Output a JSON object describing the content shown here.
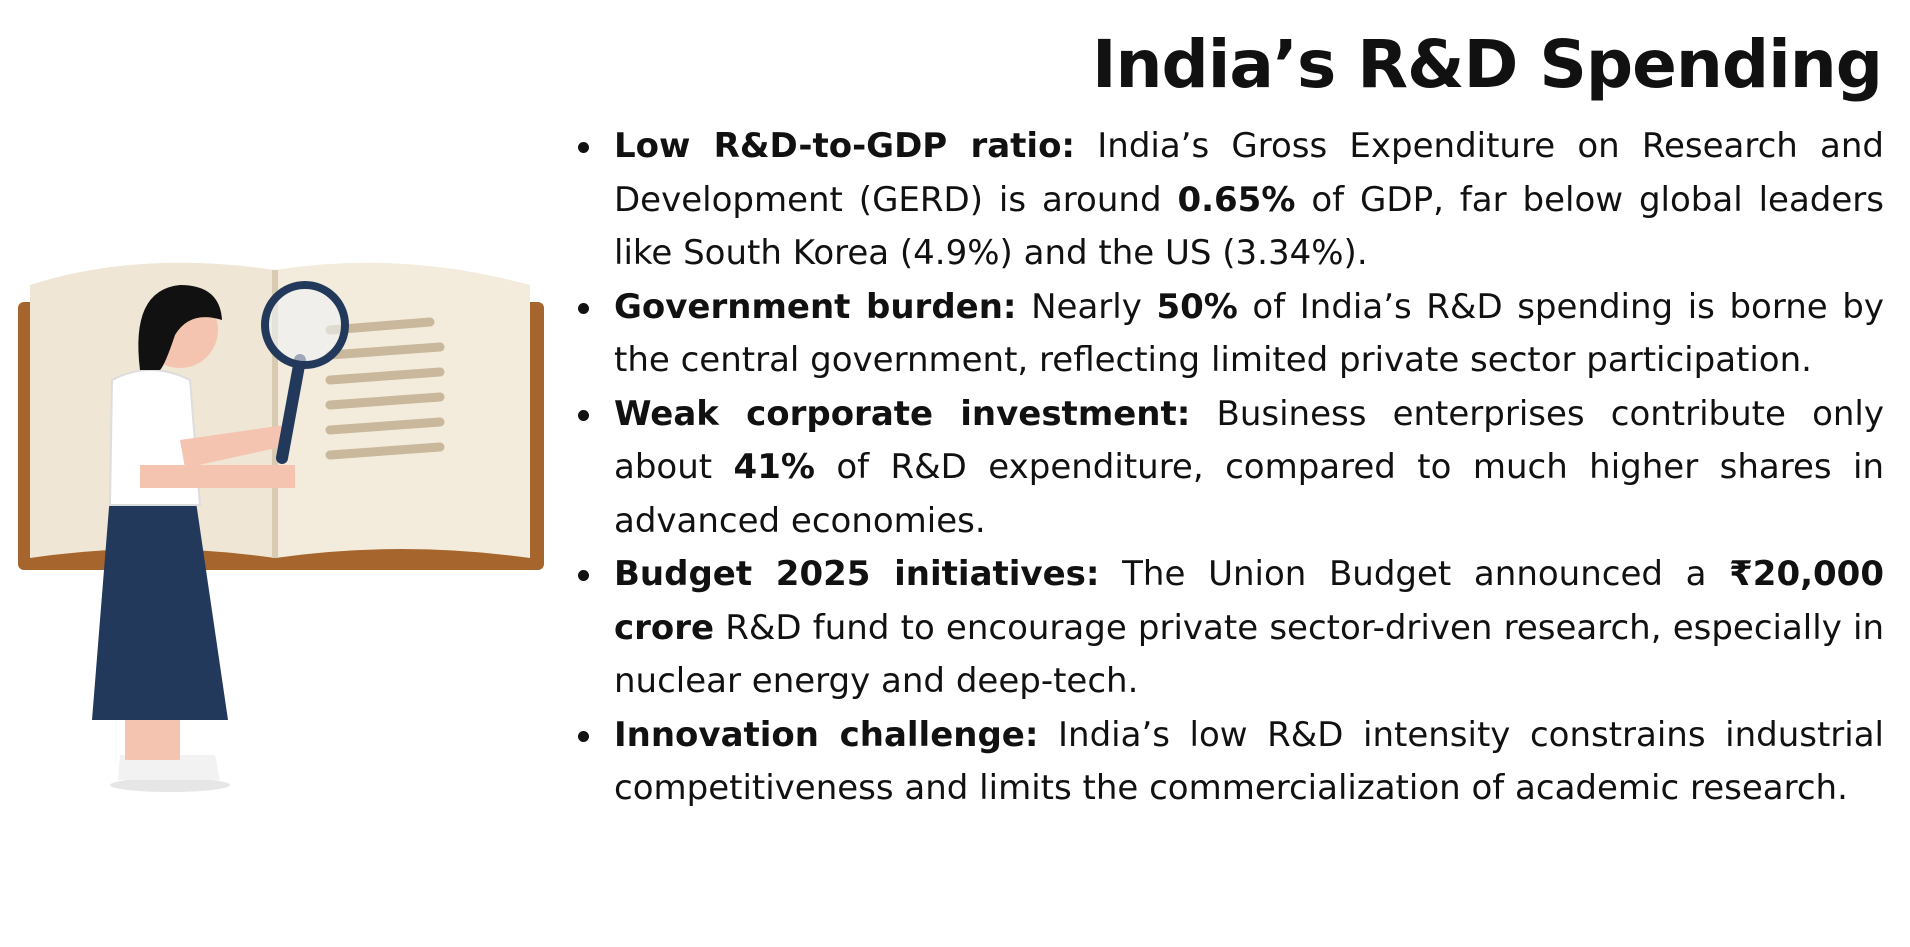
{
  "title": "India’s R&D Spending",
  "bullets": [
    {
      "segments": [
        {
          "text": "Low R&D-to-GDP ratio:",
          "bold": true
        },
        {
          "text": " India’s Gross Expenditure on Research and Development (GERD) is around ",
          "bold": false
        },
        {
          "text": "0.65%",
          "bold": true
        },
        {
          "text": " of GDP, far below global leaders like South Korea (4.9%) and the US (3.34%).",
          "bold": false
        }
      ]
    },
    {
      "segments": [
        {
          "text": "Government burden:",
          "bold": true
        },
        {
          "text": " Nearly ",
          "bold": false
        },
        {
          "text": "50%",
          "bold": true
        },
        {
          "text": " of India’s R&D spending is borne by the central government, reflecting limited private sector participation.",
          "bold": false
        }
      ]
    },
    {
      "segments": [
        {
          "text": "Weak corporate investment:",
          "bold": true
        },
        {
          "text": " Business enterprises contribute only about ",
          "bold": false
        },
        {
          "text": "41%",
          "bold": true
        },
        {
          "text": " of R&D expenditure, compared to much higher shares in advanced economies.",
          "bold": false
        }
      ]
    },
    {
      "segments": [
        {
          "text": "Budget 2025 initiatives:",
          "bold": true
        },
        {
          "text": " The Union Budget announced a ",
          "bold": false
        },
        {
          "text": "₹20,000 crore",
          "bold": true
        },
        {
          "text": " R&D fund to encourage private sector-driven research, especially in nuclear energy and deep-tech.",
          "bold": false
        }
      ]
    },
    {
      "segments": [
        {
          "text": "Innovation challenge:",
          "bold": true
        },
        {
          "text": " India’s low R&D intensity constrains industrial competitiveness and limits the commercialization of academic research.",
          "bold": false
        }
      ]
    }
  ]
}
